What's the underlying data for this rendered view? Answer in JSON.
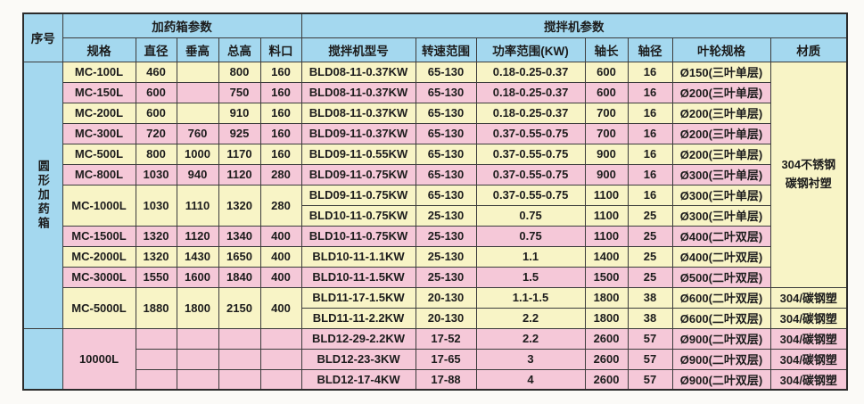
{
  "colors": {
    "header_blue": "#a4d8ef",
    "row_yellow": "#f8f4c6",
    "row_pink": "#f5c8d8",
    "grid_line": "#3c3c3c",
    "page_background": "#fbfaf7"
  },
  "table": {
    "header": {
      "serial": "序号",
      "tank_group": "加药箱参数",
      "mixer_group": "搅拌机参数",
      "columns": [
        "规格",
        "直径",
        "垂高",
        "总高",
        "料口",
        "搅拌机型号",
        "转速范围",
        "功率范围(KW)",
        "轴长",
        "轴径",
        "叶轮规格",
        "材质"
      ]
    },
    "rows": [
      {
        "cells": [
          {
            "t": "圆形加药箱",
            "bg": "b",
            "rs": 13,
            "v": true,
            "name": "serial-group-label"
          },
          {
            "t": "MC-100L",
            "bg": "y"
          },
          {
            "t": "460",
            "bg": "y"
          },
          {
            "t": "",
            "bg": "y"
          },
          {
            "t": "800",
            "bg": "y"
          },
          {
            "t": "160",
            "bg": "y"
          },
          {
            "t": "BLD08-11-0.37KW",
            "bg": "y"
          },
          {
            "t": "65-130",
            "bg": "y"
          },
          {
            "t": "0.18-0.25-0.37",
            "bg": "y"
          },
          {
            "t": "600",
            "bg": "y"
          },
          {
            "t": "16",
            "bg": "y"
          },
          {
            "t": "Ø150(三叶单层)",
            "bg": "y"
          },
          {
            "t": "304不锈钢\n碳钢衬塑",
            "bg": "y",
            "rs": 11,
            "pre": true,
            "name": "material-merged-cell"
          }
        ]
      },
      {
        "cells": [
          {
            "t": "MC-150L",
            "bg": "p"
          },
          {
            "t": "600",
            "bg": "p"
          },
          {
            "t": "",
            "bg": "p"
          },
          {
            "t": "750",
            "bg": "p"
          },
          {
            "t": "160",
            "bg": "p"
          },
          {
            "t": "BLD08-11-0.37KW",
            "bg": "p"
          },
          {
            "t": "65-130",
            "bg": "p"
          },
          {
            "t": "0.18-0.25-0.37",
            "bg": "p"
          },
          {
            "t": "600",
            "bg": "p"
          },
          {
            "t": "16",
            "bg": "p"
          },
          {
            "t": "Ø200(三叶单层)",
            "bg": "p"
          }
        ]
      },
      {
        "cells": [
          {
            "t": "MC-200L",
            "bg": "y"
          },
          {
            "t": "600",
            "bg": "y"
          },
          {
            "t": "",
            "bg": "y"
          },
          {
            "t": "910",
            "bg": "y"
          },
          {
            "t": "160",
            "bg": "y"
          },
          {
            "t": "BLD08-11-0.37KW",
            "bg": "y"
          },
          {
            "t": "65-130",
            "bg": "y"
          },
          {
            "t": "0.18-0.25-0.37",
            "bg": "y"
          },
          {
            "t": "700",
            "bg": "y"
          },
          {
            "t": "16",
            "bg": "y"
          },
          {
            "t": "Ø200(三叶单层)",
            "bg": "y"
          }
        ]
      },
      {
        "cells": [
          {
            "t": "MC-300L",
            "bg": "p"
          },
          {
            "t": "720",
            "bg": "p"
          },
          {
            "t": "760",
            "bg": "p"
          },
          {
            "t": "925",
            "bg": "p"
          },
          {
            "t": "160",
            "bg": "p"
          },
          {
            "t": "BLD09-11-0.37KW",
            "bg": "p"
          },
          {
            "t": "65-130",
            "bg": "p"
          },
          {
            "t": "0.37-0.55-0.75",
            "bg": "p"
          },
          {
            "t": "700",
            "bg": "p"
          },
          {
            "t": "16",
            "bg": "p"
          },
          {
            "t": "Ø200(三叶单层)",
            "bg": "p"
          }
        ]
      },
      {
        "cells": [
          {
            "t": "MC-500L",
            "bg": "y"
          },
          {
            "t": "800",
            "bg": "y"
          },
          {
            "t": "1000",
            "bg": "y"
          },
          {
            "t": "1170",
            "bg": "y"
          },
          {
            "t": "160",
            "bg": "y"
          },
          {
            "t": "BLD09-11-0.55KW",
            "bg": "y"
          },
          {
            "t": "65-130",
            "bg": "y"
          },
          {
            "t": "0.37-0.55-0.75",
            "bg": "y"
          },
          {
            "t": "900",
            "bg": "y"
          },
          {
            "t": "16",
            "bg": "y"
          },
          {
            "t": "Ø200(三叶单层)",
            "bg": "y"
          }
        ]
      },
      {
        "cells": [
          {
            "t": "MC-800L",
            "bg": "p"
          },
          {
            "t": "1030",
            "bg": "p"
          },
          {
            "t": "940",
            "bg": "p"
          },
          {
            "t": "1120",
            "bg": "p"
          },
          {
            "t": "280",
            "bg": "p"
          },
          {
            "t": "BLD09-11-0.75KW",
            "bg": "p"
          },
          {
            "t": "65-130",
            "bg": "p"
          },
          {
            "t": "0.37-0.55-0.75",
            "bg": "p"
          },
          {
            "t": "900",
            "bg": "p"
          },
          {
            "t": "16",
            "bg": "p"
          },
          {
            "t": "Ø300(三叶单层)",
            "bg": "p"
          }
        ]
      },
      {
        "cells": [
          {
            "t": "MC-1000L",
            "bg": "y",
            "rs": 2
          },
          {
            "t": "1030",
            "bg": "y",
            "rs": 2
          },
          {
            "t": "1110",
            "bg": "y",
            "rs": 2
          },
          {
            "t": "1320",
            "bg": "y",
            "rs": 2
          },
          {
            "t": "280",
            "bg": "y",
            "rs": 2
          },
          {
            "t": "BLD09-11-0.75KW",
            "bg": "y"
          },
          {
            "t": "65-130",
            "bg": "y"
          },
          {
            "t": "0.37-0.55-0.75",
            "bg": "y"
          },
          {
            "t": "1100",
            "bg": "y"
          },
          {
            "t": "16",
            "bg": "y"
          },
          {
            "t": "Ø300(三叶单层)",
            "bg": "y"
          }
        ]
      },
      {
        "cells": [
          {
            "t": "BLD10-11-0.75KW",
            "bg": "y"
          },
          {
            "t": "25-130",
            "bg": "y"
          },
          {
            "t": "0.75",
            "bg": "y"
          },
          {
            "t": "1100",
            "bg": "y"
          },
          {
            "t": "25",
            "bg": "y"
          },
          {
            "t": "Ø300(三叶单层)",
            "bg": "y"
          }
        ]
      },
      {
        "cells": [
          {
            "t": "MC-1500L",
            "bg": "p"
          },
          {
            "t": "1320",
            "bg": "p"
          },
          {
            "t": "1120",
            "bg": "p"
          },
          {
            "t": "1340",
            "bg": "p"
          },
          {
            "t": "400",
            "bg": "p"
          },
          {
            "t": "BLD10-11-0.75KW",
            "bg": "p"
          },
          {
            "t": "25-130",
            "bg": "p"
          },
          {
            "t": "0.75",
            "bg": "p"
          },
          {
            "t": "1100",
            "bg": "p"
          },
          {
            "t": "25",
            "bg": "p"
          },
          {
            "t": "Ø400(二叶双层)",
            "bg": "p"
          }
        ]
      },
      {
        "cells": [
          {
            "t": "MC-2000L",
            "bg": "y"
          },
          {
            "t": "1320",
            "bg": "y"
          },
          {
            "t": "1430",
            "bg": "y"
          },
          {
            "t": "1650",
            "bg": "y"
          },
          {
            "t": "400",
            "bg": "y"
          },
          {
            "t": "BLD10-11-1.1KW",
            "bg": "y"
          },
          {
            "t": "25-130",
            "bg": "y"
          },
          {
            "t": "1.1",
            "bg": "y"
          },
          {
            "t": "1400",
            "bg": "y"
          },
          {
            "t": "25",
            "bg": "y"
          },
          {
            "t": "Ø400(二叶双层)",
            "bg": "y"
          }
        ]
      },
      {
        "cells": [
          {
            "t": "MC-3000L",
            "bg": "p"
          },
          {
            "t": "1550",
            "bg": "p"
          },
          {
            "t": "1600",
            "bg": "p"
          },
          {
            "t": "1840",
            "bg": "p"
          },
          {
            "t": "400",
            "bg": "p"
          },
          {
            "t": "BLD10-11-1.5KW",
            "bg": "p"
          },
          {
            "t": "25-130",
            "bg": "p"
          },
          {
            "t": "1.5",
            "bg": "p"
          },
          {
            "t": "1500",
            "bg": "p"
          },
          {
            "t": "25",
            "bg": "p"
          },
          {
            "t": "Ø500(二叶双层)",
            "bg": "p"
          }
        ]
      },
      {
        "cells": [
          {
            "t": "MC-5000L",
            "bg": "y",
            "rs": 2
          },
          {
            "t": "1880",
            "bg": "y",
            "rs": 2
          },
          {
            "t": "1800",
            "bg": "y",
            "rs": 2
          },
          {
            "t": "2150",
            "bg": "y",
            "rs": 2
          },
          {
            "t": "400",
            "bg": "y",
            "rs": 2
          },
          {
            "t": "BLD11-17-1.5KW",
            "bg": "y"
          },
          {
            "t": "20-130",
            "bg": "y"
          },
          {
            "t": "1.1-1.5",
            "bg": "y"
          },
          {
            "t": "1800",
            "bg": "y"
          },
          {
            "t": "38",
            "bg": "y"
          },
          {
            "t": "Ø600(二叶双层)",
            "bg": "y"
          },
          {
            "t": "304/碳钢塑",
            "bg": "y"
          }
        ]
      },
      {
        "cells": [
          {
            "t": "BLD11-11-2.2KW",
            "bg": "y"
          },
          {
            "t": "20-130",
            "bg": "y"
          },
          {
            "t": "2.2",
            "bg": "y"
          },
          {
            "t": "1800",
            "bg": "y"
          },
          {
            "t": "38",
            "bg": "y"
          },
          {
            "t": "Ø600(二叶双层)",
            "bg": "y"
          },
          {
            "t": "304/碳钢塑",
            "bg": "y"
          }
        ]
      },
      {
        "cells": [
          {
            "t": "",
            "bg": "b",
            "rs": 3,
            "name": "serial-empty-cell"
          },
          {
            "t": "10000L",
            "bg": "p",
            "rs": 3
          },
          {
            "t": "",
            "bg": "p"
          },
          {
            "t": "",
            "bg": "p"
          },
          {
            "t": "",
            "bg": "p"
          },
          {
            "t": "",
            "bg": "p"
          },
          {
            "t": "BLD12-29-2.2KW",
            "bg": "p"
          },
          {
            "t": "17-52",
            "bg": "p"
          },
          {
            "t": "2.2",
            "bg": "p"
          },
          {
            "t": "2600",
            "bg": "p"
          },
          {
            "t": "57",
            "bg": "p"
          },
          {
            "t": "Ø900(二叶双层)",
            "bg": "p"
          },
          {
            "t": "304/碳钢塑",
            "bg": "p"
          }
        ]
      },
      {
        "cells": [
          {
            "t": "",
            "bg": "p"
          },
          {
            "t": "",
            "bg": "p"
          },
          {
            "t": "",
            "bg": "p"
          },
          {
            "t": "",
            "bg": "p"
          },
          {
            "t": "BLD12-23-3KW",
            "bg": "p"
          },
          {
            "t": "17-65",
            "bg": "p"
          },
          {
            "t": "3",
            "bg": "p"
          },
          {
            "t": "2600",
            "bg": "p"
          },
          {
            "t": "57",
            "bg": "p"
          },
          {
            "t": "Ø900(二叶双层)",
            "bg": "p"
          },
          {
            "t": "304/碳钢塑",
            "bg": "p"
          }
        ]
      },
      {
        "cells": [
          {
            "t": "",
            "bg": "p"
          },
          {
            "t": "",
            "bg": "p"
          },
          {
            "t": "",
            "bg": "p"
          },
          {
            "t": "",
            "bg": "p"
          },
          {
            "t": "BLD12-17-4KW",
            "bg": "p"
          },
          {
            "t": "17-88",
            "bg": "p"
          },
          {
            "t": "4",
            "bg": "p"
          },
          {
            "t": "2600",
            "bg": "p"
          },
          {
            "t": "57",
            "bg": "p"
          },
          {
            "t": "Ø900(二叶双层)",
            "bg": "p"
          },
          {
            "t": "304/碳钢塑",
            "bg": "p"
          }
        ]
      }
    ]
  }
}
